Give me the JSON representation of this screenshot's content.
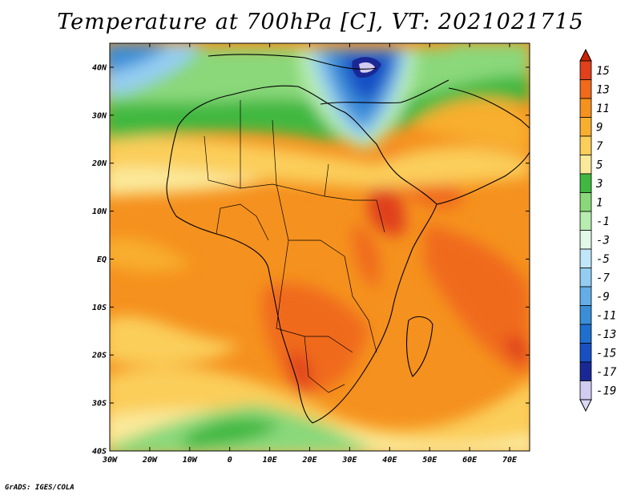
{
  "map": {
    "title": "Temperature at 700hPa [C], VT: 2021021715",
    "credit": "GrADS: IGES/COLA",
    "lat_labels": [
      "40N",
      "30N",
      "20N",
      "10N",
      "EQ",
      "10S",
      "20S",
      "30S",
      "40S"
    ],
    "lon_labels": [
      "30W",
      "20W",
      "10W",
      "0",
      "10E",
      "20E",
      "30E",
      "40E",
      "50E",
      "60E",
      "70E"
    ],
    "extent": {
      "lon_min": -30,
      "lon_max": 75,
      "lat_min": -40,
      "lat_max": 45
    }
  },
  "colorbar": {
    "levels": [
      "15",
      "13",
      "11",
      "9",
      "7",
      "5",
      "3",
      "1",
      "-1",
      "-3",
      "-5",
      "-7",
      "-9",
      "-11",
      "-13",
      "-15",
      "-17",
      "-19"
    ],
    "colors": [
      "#e0401a",
      "#f06a1a",
      "#f5911e",
      "#f8ae2f",
      "#fbce5a",
      "#fbe99a",
      "#40b840",
      "#8ad87a",
      "#b8ecb0",
      "#e2f8e8",
      "#c0e6fa",
      "#94cdf2",
      "#64aee8",
      "#3a8ed8",
      "#1f6fd0",
      "#1850c4",
      "#1a2896",
      "#d2ccf0"
    ],
    "top_cap_color": "#c82400",
    "bottom_cap_color": "#dad8f8"
  },
  "colors": {
    "hot": "#e0401a",
    "warm": "#f5911e",
    "mild": "#fbce5a",
    "cool": "#40b840",
    "cold": "#1f6fd0",
    "coldest": "#1a2896"
  }
}
